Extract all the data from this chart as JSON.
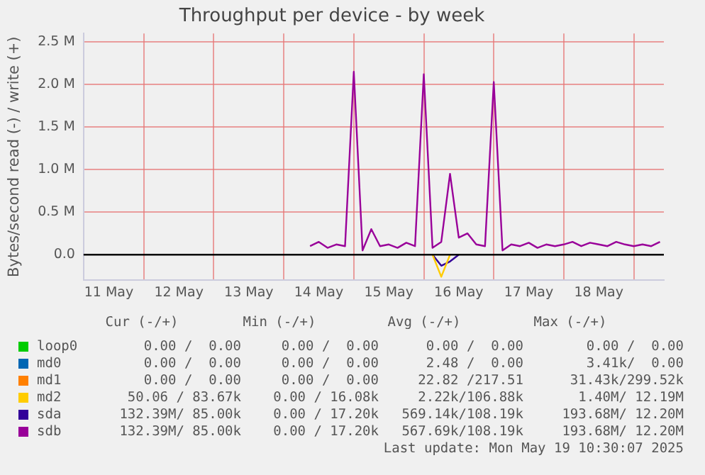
{
  "chart_data": {
    "type": "line",
    "title": "Throughput per device - by week",
    "ylabel": "Bytes/second read (-) / write (+)",
    "x": [
      "2025-05-14T09:00",
      "2025-05-14T12:00",
      "2025-05-14T15:00",
      "2025-05-14T18:00",
      "2025-05-14T21:00",
      "2025-05-15T00:00",
      "2025-05-15T03:00",
      "2025-05-15T06:00",
      "2025-05-15T09:00",
      "2025-05-15T12:00",
      "2025-05-15T15:00",
      "2025-05-15T18:00",
      "2025-05-15T21:00",
      "2025-05-16T00:00",
      "2025-05-16T03:00",
      "2025-05-16T06:00",
      "2025-05-16T09:00",
      "2025-05-16T12:00",
      "2025-05-16T15:00",
      "2025-05-16T18:00",
      "2025-05-16T21:00",
      "2025-05-17T00:00",
      "2025-05-17T03:00",
      "2025-05-17T06:00",
      "2025-05-17T09:00",
      "2025-05-17T12:00",
      "2025-05-17T15:00",
      "2025-05-17T18:00",
      "2025-05-17T21:00",
      "2025-05-18T00:00",
      "2025-05-18T03:00",
      "2025-05-18T06:00",
      "2025-05-18T09:00",
      "2025-05-18T12:00",
      "2025-05-18T15:00",
      "2025-05-18T18:00",
      "2025-05-18T21:00",
      "2025-05-19T00:00",
      "2025-05-19T03:00",
      "2025-05-19T06:00",
      "2025-05-19T09:00"
    ],
    "series": [
      {
        "name": "loop0",
        "color": "#00cc00",
        "values": [
          null,
          null,
          null,
          null,
          null,
          null,
          null,
          null,
          null,
          null,
          null,
          null,
          null,
          null,
          null,
          null,
          null,
          null,
          null,
          null,
          null,
          null,
          null,
          null,
          null,
          null,
          null,
          null,
          null,
          null,
          null,
          null,
          null,
          null,
          null,
          null,
          null,
          null,
          null,
          null,
          null
        ]
      },
      {
        "name": "md0",
        "color": "#0066b3",
        "values": [
          null,
          null,
          null,
          null,
          null,
          null,
          null,
          null,
          null,
          null,
          null,
          null,
          null,
          null,
          null,
          null,
          null,
          null,
          null,
          null,
          null,
          null,
          null,
          null,
          null,
          null,
          null,
          null,
          null,
          null,
          null,
          null,
          null,
          null,
          null,
          null,
          null,
          null,
          null,
          null,
          null
        ]
      },
      {
        "name": "md1",
        "color": "#ff8000",
        "values": [
          null,
          null,
          null,
          null,
          null,
          null,
          null,
          null,
          null,
          null,
          null,
          null,
          null,
          null,
          null,
          null,
          null,
          null,
          null,
          null,
          null,
          null,
          null,
          null,
          null,
          null,
          null,
          null,
          null,
          null,
          null,
          null,
          null,
          null,
          null,
          null,
          null,
          null,
          null,
          null,
          null
        ]
      },
      {
        "name": "md2",
        "color": "#ffcc00",
        "values": [
          null,
          null,
          null,
          null,
          null,
          null,
          null,
          null,
          null,
          null,
          null,
          null,
          null,
          null,
          0,
          -0.26,
          0,
          null,
          null,
          null,
          null,
          null,
          null,
          null,
          null,
          null,
          null,
          null,
          null,
          null,
          null,
          null,
          null,
          null,
          null,
          null,
          null,
          null,
          null,
          null,
          null
        ]
      },
      {
        "name": "sda",
        "color": "#330099",
        "values": [
          null,
          null,
          null,
          null,
          null,
          null,
          null,
          null,
          null,
          null,
          null,
          null,
          null,
          null,
          0,
          -0.13,
          -0.08,
          0,
          null,
          null,
          null,
          null,
          null,
          null,
          null,
          null,
          null,
          null,
          null,
          null,
          null,
          null,
          null,
          null,
          null,
          null,
          null,
          null,
          null,
          null,
          null
        ]
      },
      {
        "name": "sdb",
        "color": "#990099",
        "values": [
          0.1,
          0.15,
          0.08,
          0.12,
          0.1,
          2.15,
          0.05,
          0.3,
          0.1,
          0.12,
          0.08,
          0.14,
          0.1,
          2.12,
          0.08,
          0.15,
          0.95,
          0.2,
          0.25,
          0.12,
          0.1,
          2.03,
          0.05,
          0.12,
          0.1,
          0.14,
          0.08,
          0.12,
          0.1,
          0.12,
          0.15,
          0.1,
          0.14,
          0.12,
          0.1,
          0.15,
          0.12,
          0.1,
          0.12,
          0.1,
          0.15
        ]
      }
    ],
    "xlim": [
      "2025-05-11T03:20",
      "2025-05-19T10:20"
    ],
    "xticks": [
      {
        "value": "2025-05-11T12:00",
        "label": "11 May"
      },
      {
        "value": "2025-05-12T00:00",
        "label": null
      },
      {
        "value": "2025-05-12T12:00",
        "label": "12 May"
      },
      {
        "value": "2025-05-13T00:00",
        "label": null
      },
      {
        "value": "2025-05-13T12:00",
        "label": "13 May"
      },
      {
        "value": "2025-05-14T00:00",
        "label": null
      },
      {
        "value": "2025-05-14T12:00",
        "label": "14 May"
      },
      {
        "value": "2025-05-15T00:00",
        "label": null
      },
      {
        "value": "2025-05-15T12:00",
        "label": "15 May"
      },
      {
        "value": "2025-05-16T00:00",
        "label": null
      },
      {
        "value": "2025-05-16T12:00",
        "label": "16 May"
      },
      {
        "value": "2025-05-17T00:00",
        "label": null
      },
      {
        "value": "2025-05-17T12:00",
        "label": "17 May"
      },
      {
        "value": "2025-05-18T00:00",
        "label": null
      },
      {
        "value": "2025-05-18T12:00",
        "label": "18 May"
      },
      {
        "value": "2025-05-19T00:00",
        "label": null
      }
    ],
    "ylim": [
      -0.3,
      2.6
    ],
    "yticks": [
      {
        "value": 0,
        "label": "0.0"
      },
      {
        "value": 0.5,
        "label": "0.5 M"
      },
      {
        "value": 1,
        "label": "1.0 M"
      },
      {
        "value": 1.5,
        "label": "1.5 M"
      },
      {
        "value": 2,
        "label": "2.0 M"
      },
      {
        "value": 2.5,
        "label": "2.5 M"
      }
    ],
    "ref_lines": [
      {
        "axis": "y",
        "value": 0,
        "color": "#000000"
      }
    ],
    "grid": true,
    "legend": "bottom",
    "marker": "none",
    "line_style": "solid",
    "annotations": [
      "Cur (-/+)",
      "Min (-/+)",
      "Avg (-/+)",
      "Max (-/+)",
      "0.00 /  0.00",
      "0.00 /  0.00",
      "0.00 /  0.00",
      "0.00 /  0.00",
      "0.00 /  0.00",
      "0.00 /  0.00",
      "2.48 /  0.00",
      "3.41k/  0.00",
      "0.00 /  0.00",
      "0.00 /  0.00",
      "22.82 /217.51",
      "31.43k/299.52k",
      "50.06 / 83.67k",
      "0.00 / 16.08k",
      "2.22k/106.88k",
      "1.40M/ 12.19M",
      "132.39M/ 85.00k",
      "0.00 / 17.20k",
      "569.14k/108.19k",
      "193.68M/ 12.20M",
      "132.39M/ 85.00k",
      "0.00 / 17.20k",
      "567.69k/108.19k",
      "193.68M/ 12.20M",
      "Last update: Mon May 19 10:30:07 2025"
    ]
  }
}
